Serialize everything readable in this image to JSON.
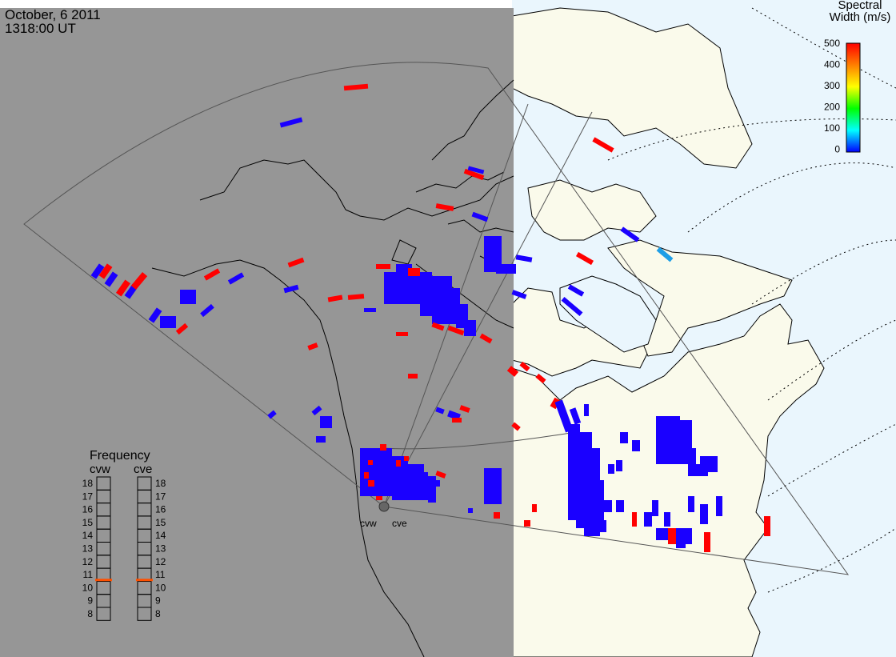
{
  "header": {
    "date": "October, 6 2011",
    "time": "1318:00 UT"
  },
  "colorbar": {
    "title_line1": "Spectral",
    "title_line2": "Width (m/s)",
    "ticks": [
      "500",
      "400",
      "300",
      "200",
      "100",
      "0"
    ],
    "stops": [
      "#ff0000",
      "#ff7f00",
      "#ffff00",
      "#00ff00",
      "#00ffff",
      "#0000ff"
    ]
  },
  "frequency": {
    "title": "Frequency",
    "radars": [
      {
        "name": "cvw",
        "active_mhz": 10.6
      },
      {
        "name": "cve",
        "active_mhz": 10.6
      }
    ],
    "scale": [
      "18",
      "17",
      "16",
      "15",
      "14",
      "13",
      "12",
      "11",
      "10",
      "9",
      "8"
    ]
  },
  "radar_labels": [
    "cvw",
    "cve"
  ],
  "colors": {
    "night": "#969696",
    "land_day": "#fafaeb",
    "ocean_day": "#eaf6fd",
    "high_width": "#ff0000",
    "low_width": "#1a00ff",
    "mid_width": "#1e9ee6",
    "freq_marker": "#ff5000"
  }
}
